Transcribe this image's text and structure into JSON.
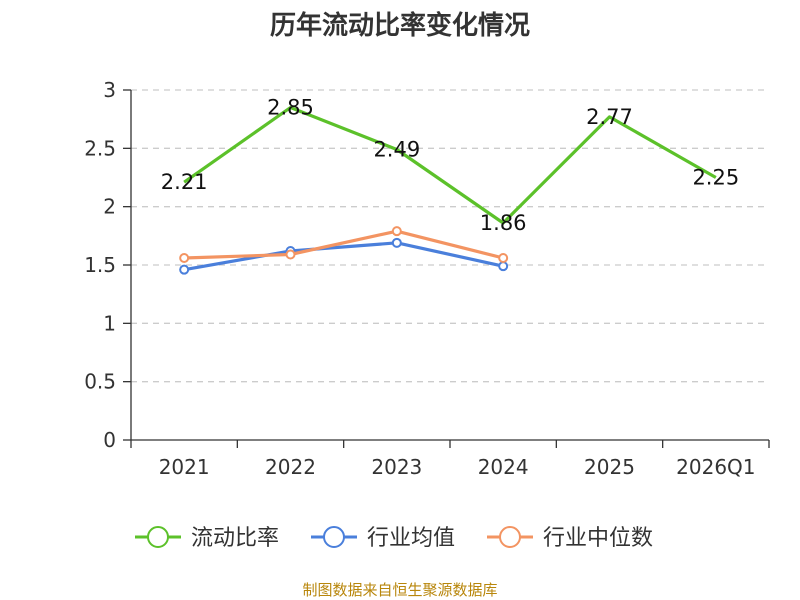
{
  "chart_data": {
    "type": "line",
    "title": "历年流动比率变化情况",
    "categories": [
      "2021",
      "2022",
      "2023",
      "2024",
      "2025",
      "2026Q1"
    ],
    "ylim": [
      0,
      3
    ],
    "yticks": [
      "0",
      "0.5",
      "1",
      "1.5",
      "2",
      "2.5",
      "3"
    ],
    "ytick_values": [
      0,
      0.5,
      1,
      1.5,
      2,
      2.5,
      3
    ],
    "grid": true,
    "legend_position": "bottom",
    "series": [
      {
        "name": "流动比率",
        "color": "#5cc12a",
        "values": [
          2.21,
          2.85,
          2.49,
          1.86,
          2.77,
          2.25
        ],
        "labels": [
          "2.21",
          "2.85",
          "2.49",
          "1.86",
          "2.77",
          "2.25"
        ],
        "show_labels": true,
        "markers": false
      },
      {
        "name": "行业均值",
        "color": "#4a7fdb",
        "values": [
          1.46,
          1.62,
          1.69,
          1.49,
          null,
          null
        ],
        "show_labels": false,
        "markers": true
      },
      {
        "name": "行业中位数",
        "color": "#f39462",
        "values": [
          1.56,
          1.59,
          1.79,
          1.56,
          null,
          null
        ],
        "show_labels": false,
        "markers": true
      }
    ],
    "source": "制图数据来自恒生聚源数据库"
  }
}
